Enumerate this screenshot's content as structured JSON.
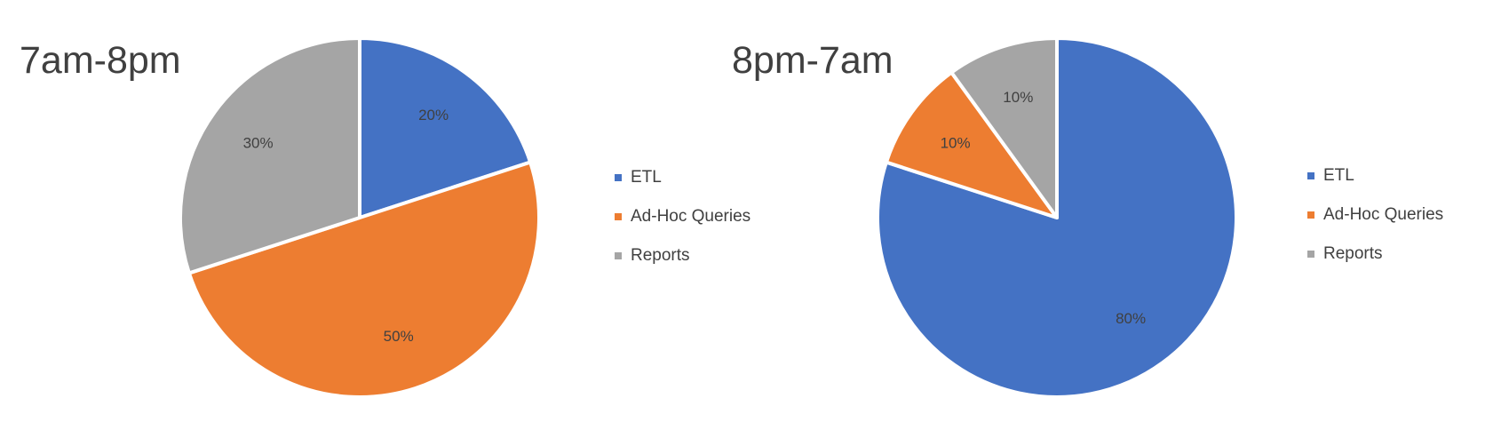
{
  "chart_data": [
    {
      "type": "pie",
      "title": "7am-8pm",
      "categories": [
        "ETL",
        "Ad-Hoc Queries",
        "Reports"
      ],
      "values": [
        20,
        50,
        30
      ],
      "labels": [
        "20%",
        "50%",
        "30%"
      ],
      "colors": [
        "#4472C4",
        "#ED7D31",
        "#A5A5A5"
      ],
      "legend_position": "right"
    },
    {
      "type": "pie",
      "title": "8pm-7am",
      "categories": [
        "ETL",
        "Ad-Hoc Queries",
        "Reports"
      ],
      "values": [
        80,
        10,
        10
      ],
      "labels": [
        "80%",
        "10%",
        "10%"
      ],
      "colors": [
        "#4472C4",
        "#ED7D31",
        "#A5A5A5"
      ],
      "legend_position": "right"
    }
  ]
}
